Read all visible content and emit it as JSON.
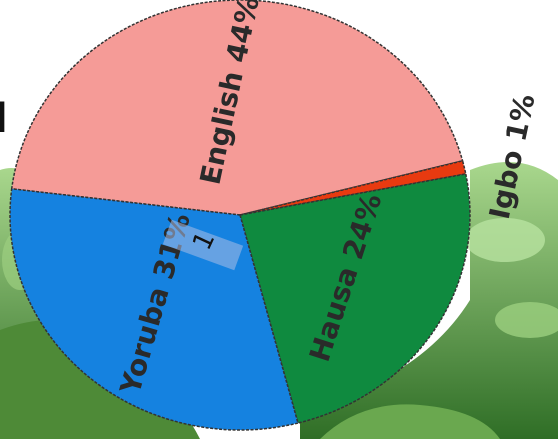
{
  "chart_data": {
    "type": "pie",
    "title": "",
    "slices": [
      {
        "label": "English",
        "value": 44,
        "pct_text": "44%",
        "color": "#f59b97"
      },
      {
        "label": "Igbo",
        "value": 1,
        "pct_text": "1%",
        "color": "#e83a10"
      },
      {
        "label": "Hausa",
        "value": 24,
        "pct_text": "24%",
        "color": "#0f8a3f"
      },
      {
        "label": "Yoruba",
        "value": 31,
        "pct_text": "31%",
        "color": "#1582e0"
      }
    ],
    "legend": "none"
  },
  "overlay": {
    "left_glyph": "l",
    "marker_number": "1"
  },
  "colors": {
    "background": "#ffffff",
    "foliage_dark": "#3f7a2d",
    "foliage_light": "#8cc96b",
    "outline": "#333333"
  }
}
